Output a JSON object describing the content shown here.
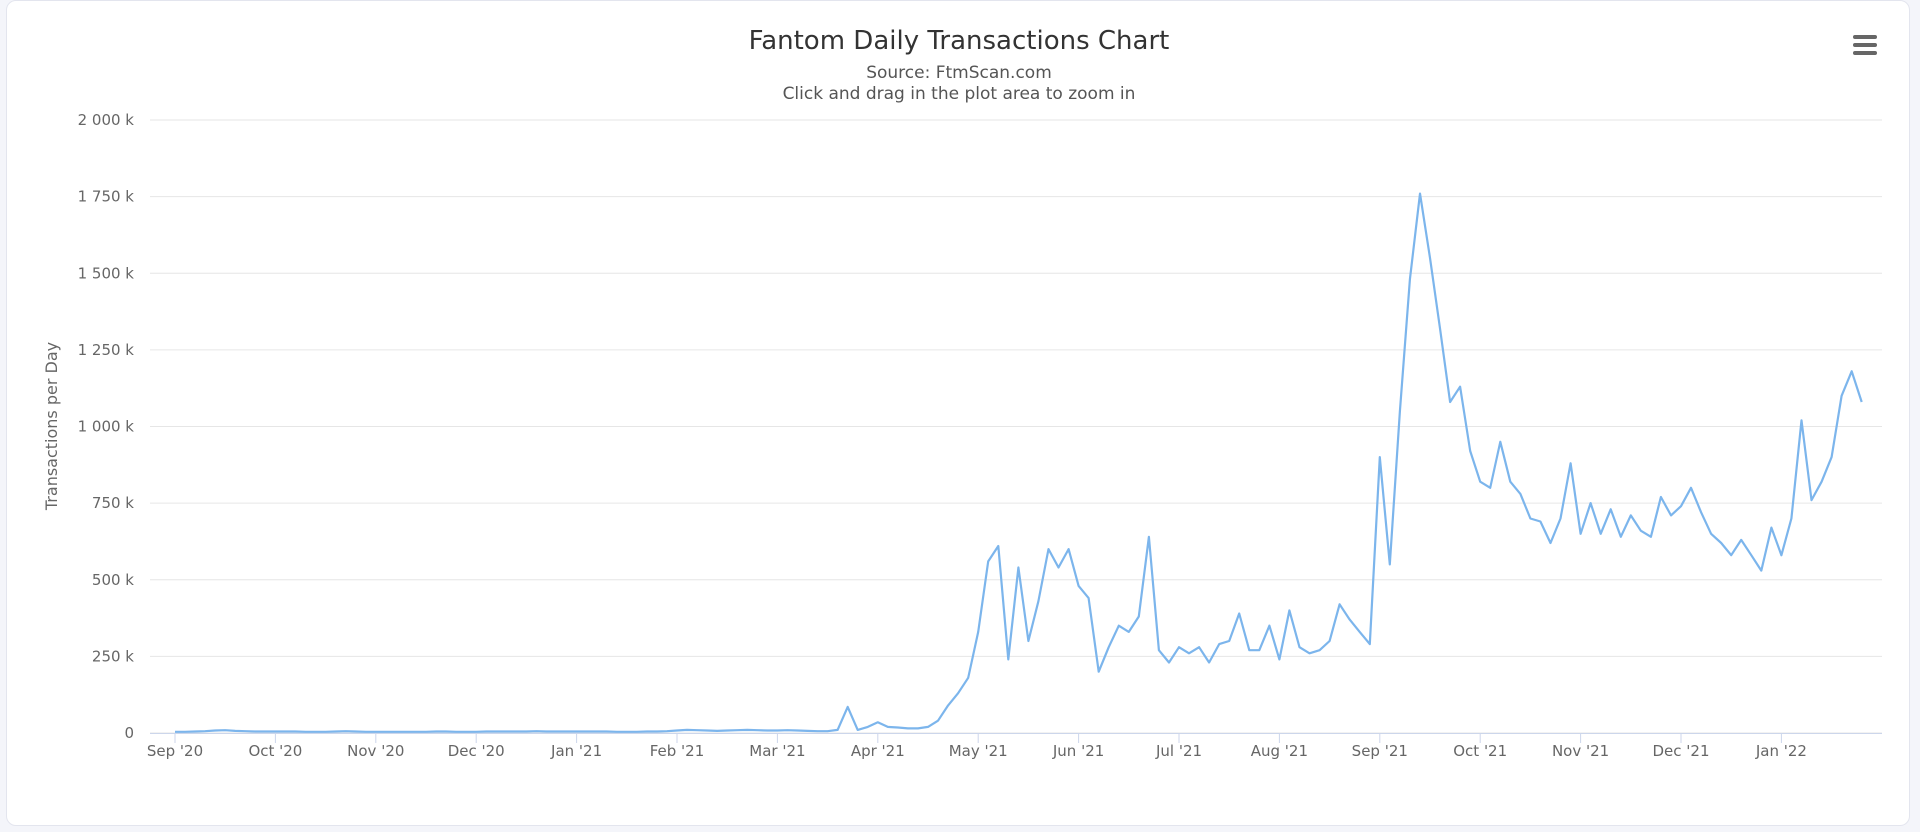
{
  "chart_data": {
    "type": "line",
    "title": "Fantom Daily Transactions Chart",
    "subtitle": "Source: FtmScan.com",
    "annotation": "Click and drag in the plot area to zoom in",
    "y_label": "Transactions per Day",
    "categories": [
      "Sep '20",
      null,
      null,
      null,
      null,
      null,
      null,
      null,
      null,
      null,
      "Oct '20",
      null,
      null,
      null,
      null,
      null,
      null,
      null,
      null,
      null,
      "Nov '20",
      null,
      null,
      null,
      null,
      null,
      null,
      null,
      null,
      null,
      "Dec '20",
      null,
      null,
      null,
      null,
      null,
      null,
      null,
      null,
      null,
      "Jan '21",
      null,
      null,
      null,
      null,
      null,
      null,
      null,
      null,
      null,
      "Feb '21",
      null,
      null,
      null,
      null,
      null,
      null,
      null,
      null,
      null,
      "Mar '21",
      null,
      null,
      null,
      null,
      null,
      null,
      null,
      null,
      null,
      "Apr '21",
      null,
      null,
      null,
      null,
      null,
      null,
      null,
      null,
      null,
      "May '21",
      null,
      null,
      null,
      null,
      null,
      null,
      null,
      null,
      null,
      "Jun '21",
      null,
      null,
      null,
      null,
      null,
      null,
      null,
      null,
      null,
      "Jul '21",
      null,
      null,
      null,
      null,
      null,
      null,
      null,
      null,
      null,
      "Aug '21",
      null,
      null,
      null,
      null,
      null,
      null,
      null,
      null,
      null,
      "Sep '21",
      null,
      null,
      null,
      null,
      null,
      null,
      null,
      null,
      null,
      "Oct '21",
      null,
      null,
      null,
      null,
      null,
      null,
      null,
      null,
      null,
      "Nov '21",
      null,
      null,
      null,
      null,
      null,
      null,
      null,
      null,
      null,
      "Dec '21",
      null,
      null,
      null,
      null,
      null,
      null,
      null,
      null,
      null,
      "Jan '22",
      null,
      null,
      null,
      null,
      null,
      null,
      null,
      null
    ],
    "series": [
      {
        "name": "Transactions per Day",
        "color": "#7cb5ec",
        "values": [
          4,
          4,
          5,
          6,
          8,
          9,
          7,
          6,
          5,
          5,
          5,
          5,
          5,
          4,
          4,
          4,
          5,
          6,
          5,
          4,
          4,
          4,
          4,
          4,
          4,
          4,
          5,
          5,
          4,
          4,
          4,
          5,
          5,
          5,
          5,
          5,
          6,
          5,
          5,
          5,
          5,
          5,
          5,
          5,
          4,
          4,
          4,
          5,
          5,
          6,
          8,
          10,
          9,
          8,
          7,
          8,
          9,
          10,
          9,
          8,
          8,
          9,
          8,
          7,
          6,
          6,
          10,
          85,
          10,
          20,
          35,
          20,
          18,
          15,
          15,
          20,
          40,
          90,
          130,
          180,
          330,
          560,
          610,
          240,
          540,
          300,
          430,
          600,
          540,
          600,
          480,
          440,
          200,
          280,
          350,
          330,
          380,
          640,
          270,
          230,
          280,
          260,
          280,
          230,
          290,
          300,
          390,
          270,
          270,
          350,
          240,
          400,
          280,
          260,
          270,
          300,
          420,
          370,
          330,
          290,
          900,
          550,
          1050,
          1480,
          1760,
          1550,
          1320,
          1080,
          1130,
          920,
          820,
          800,
          950,
          820,
          780,
          700,
          690,
          620,
          700,
          880,
          650,
          750,
          650,
          730,
          640,
          710,
          660,
          640,
          770,
          710,
          740,
          800,
          720,
          650,
          620,
          580,
          630,
          580,
          530,
          670,
          580,
          700,
          1020,
          760,
          820,
          900,
          1100,
          1180,
          1080
        ]
      }
    ],
    "ylim": [
      0,
      2000
    ],
    "yticks": [
      0,
      {
        "value": 250,
        "label": "250 k"
      },
      {
        "value": 500,
        "label": "500 k"
      },
      {
        "value": 750,
        "label": "750 k"
      },
      {
        "value": 1000,
        "label": "1 000 k"
      },
      {
        "value": 1250,
        "label": "1 250 k"
      },
      {
        "value": 1500,
        "label": "1 500 k"
      },
      {
        "value": 1750,
        "label": "1 750 k"
      },
      {
        "value": 2000,
        "label": "2 000 k"
      }
    ],
    "grid": true
  }
}
